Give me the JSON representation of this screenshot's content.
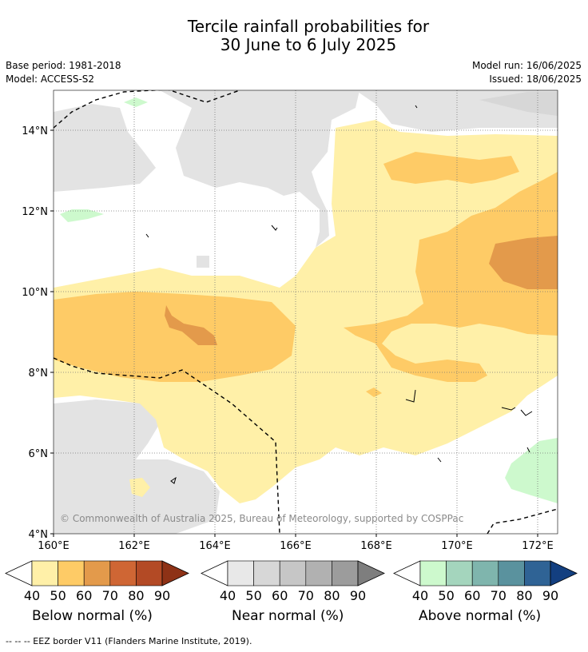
{
  "title": {
    "line1": "Tercile rainfall probabilities for",
    "line2": "30 June to 6 July 2025"
  },
  "meta": {
    "base_period": "Base period: 1981-2018",
    "model": "Model: ACCESS-S2",
    "model_run": "Model run: 16/06/2025",
    "issued": "Issued: 18/06/2025"
  },
  "map": {
    "latitude_labels": [
      "14°N",
      "12°N",
      "10°N",
      "8°N",
      "6°N",
      "4°N"
    ],
    "longitude_labels": [
      "160°E",
      "162°E",
      "164°E",
      "166°E",
      "168°E",
      "170°E",
      "172°E"
    ],
    "copyright": "© Commonwealth of Australia 2025, Bureau of Meteorology, supported by COSPPac"
  },
  "legends": [
    {
      "label": "Below normal (%)",
      "ticks": [
        "40",
        "50",
        "60",
        "70",
        "80",
        "90"
      ],
      "colors": [
        "#fff0a8",
        "#fecb66",
        "#e39a4b",
        "#cf6634",
        "#b34a25",
        "#8e3216"
      ]
    },
    {
      "label": "Near normal (%)",
      "ticks": [
        "40",
        "50",
        "60",
        "70",
        "80",
        "90"
      ],
      "colors": [
        "#e8e8e8",
        "#d7d7d7",
        "#c6c6c6",
        "#b1b1b1",
        "#9c9c9c",
        "#7e7e7e"
      ]
    },
    {
      "label": "Above normal (%)",
      "ticks": [
        "40",
        "50",
        "60",
        "70",
        "80",
        "90"
      ],
      "colors": [
        "#cdf9cd",
        "#a4d5bd",
        "#7fb5ad",
        "#5a929e",
        "#2f6395",
        "#133f80"
      ]
    }
  ],
  "footnote": "--  --  -- EEZ border V11 (Flanders Marine Institute, 2019)."
}
